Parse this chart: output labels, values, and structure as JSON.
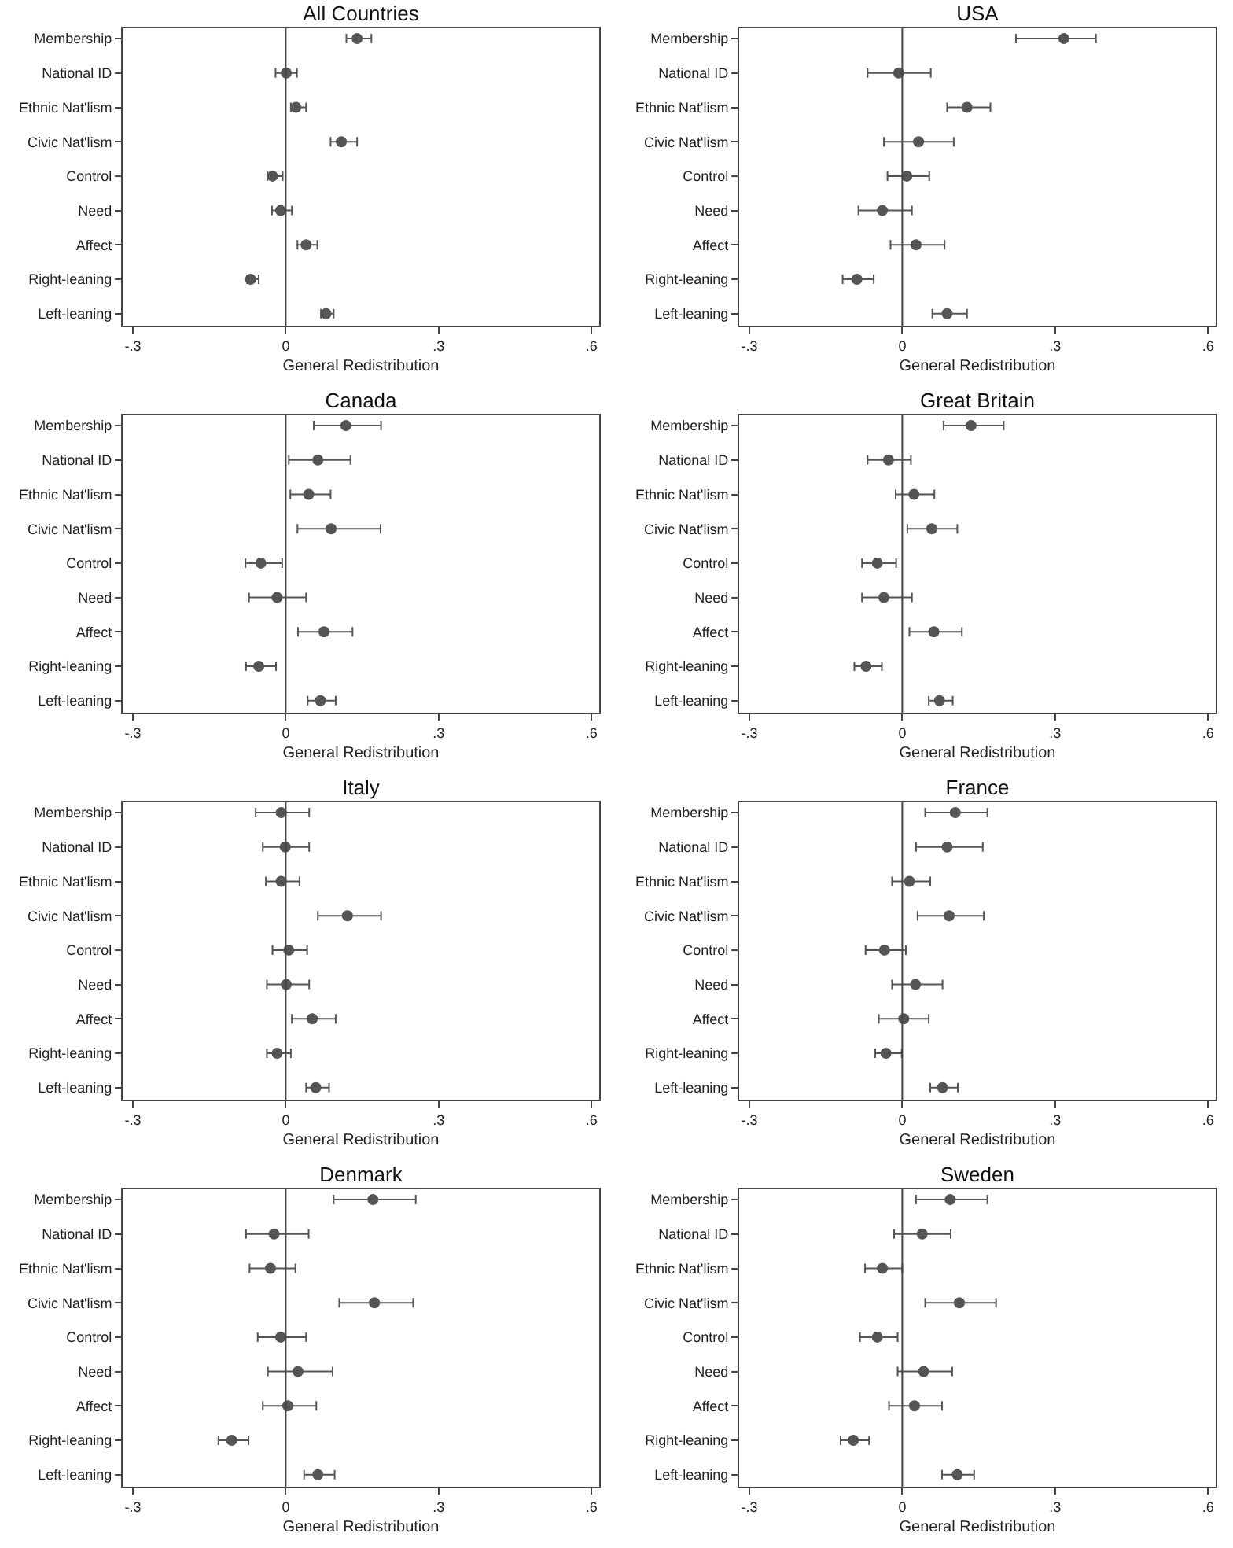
{
  "chart_data": [
    {
      "type": "scatter",
      "orientation": "horizontal",
      "title": "All Countries",
      "xlabel": "General Redistribution",
      "categories": [
        "Membership",
        "National ID",
        "Ethnic Nat'lism",
        "Civic Nat'lism",
        "Control",
        "Need",
        "Affect",
        "Right-leaning",
        "Left-leaning"
      ],
      "color": "#555555",
      "marker": "circle",
      "grid": false,
      "xlim": [
        -0.32,
        0.615
      ],
      "xticks": [
        {
          "value": -0.3,
          "label": "-.3"
        },
        {
          "value": 0,
          "label": "0"
        },
        {
          "value": 0.3,
          "label": ".3"
        },
        {
          "value": 0.6,
          "label": ".6"
        }
      ],
      "ref_lines": [
        {
          "axis": "x",
          "value": 0
        }
      ],
      "values": [
        0.14,
        0.001,
        0.02,
        0.109,
        -0.026,
        -0.01,
        0.04,
        -0.069,
        0.079
      ],
      "errors": [
        [
          0.119,
          0.168
        ],
        [
          -0.02,
          0.022
        ],
        [
          0.01,
          0.04
        ],
        [
          0.088,
          0.14
        ],
        [
          -0.036,
          -0.006
        ],
        [
          -0.027,
          0.012
        ],
        [
          0.023,
          0.062
        ],
        [
          -0.076,
          -0.053
        ],
        [
          0.069,
          0.094
        ]
      ]
    },
    {
      "type": "scatter",
      "orientation": "horizontal",
      "title": "USA",
      "xlabel": "General Redistribution",
      "categories": [
        "Membership",
        "National ID",
        "Ethnic Nat'lism",
        "Civic Nat'lism",
        "Control",
        "Need",
        "Affect",
        "Right-leaning",
        "Left-leaning"
      ],
      "color": "#555555",
      "marker": "circle",
      "grid": false,
      "xlim": [
        -0.32,
        0.615
      ],
      "xticks": [
        {
          "value": -0.3,
          "label": "-.3"
        },
        {
          "value": 0,
          "label": "0"
        },
        {
          "value": 0.3,
          "label": ".3"
        },
        {
          "value": 0.6,
          "label": ".6"
        }
      ],
      "ref_lines": [
        {
          "axis": "x",
          "value": 0
        }
      ],
      "values": [
        0.317,
        -0.007,
        0.127,
        0.032,
        0.009,
        -0.039,
        0.027,
        -0.089,
        0.088
      ],
      "errors": [
        [
          0.223,
          0.38
        ],
        [
          -0.068,
          0.056
        ],
        [
          0.088,
          0.173
        ],
        [
          -0.036,
          0.101
        ],
        [
          -0.029,
          0.053
        ],
        [
          -0.086,
          0.019
        ],
        [
          -0.023,
          0.083
        ],
        [
          -0.117,
          -0.056
        ],
        [
          0.059,
          0.127
        ]
      ]
    },
    {
      "type": "scatter",
      "orientation": "horizontal",
      "title": "Canada",
      "xlabel": "General Redistribution",
      "categories": [
        "Membership",
        "National ID",
        "Ethnic Nat'lism",
        "Civic Nat'lism",
        "Control",
        "Need",
        "Affect",
        "Right-leaning",
        "Left-leaning"
      ],
      "color": "#555555",
      "marker": "circle",
      "grid": false,
      "xlim": [
        -0.32,
        0.615
      ],
      "xticks": [
        {
          "value": -0.3,
          "label": "-.3"
        },
        {
          "value": 0,
          "label": "0"
        },
        {
          "value": 0.3,
          "label": ".3"
        },
        {
          "value": 0.6,
          "label": ".6"
        }
      ],
      "ref_lines": [
        {
          "axis": "x",
          "value": 0
        }
      ],
      "values": [
        0.118,
        0.063,
        0.045,
        0.089,
        -0.049,
        -0.017,
        0.075,
        -0.053,
        0.068
      ],
      "errors": [
        [
          0.055,
          0.187
        ],
        [
          0.006,
          0.127
        ],
        [
          0.009,
          0.088
        ],
        [
          0.023,
          0.186
        ],
        [
          -0.079,
          -0.007
        ],
        [
          -0.072,
          0.04
        ],
        [
          0.024,
          0.131
        ],
        [
          -0.078,
          -0.019
        ],
        [
          0.043,
          0.098
        ]
      ]
    },
    {
      "type": "scatter",
      "orientation": "horizontal",
      "title": "Great Britain",
      "xlabel": "General Redistribution",
      "categories": [
        "Membership",
        "National ID",
        "Ethnic Nat'lism",
        "Civic Nat'lism",
        "Control",
        "Need",
        "Affect",
        "Right-leaning",
        "Left-leaning"
      ],
      "color": "#555555",
      "marker": "circle",
      "grid": false,
      "xlim": [
        -0.32,
        0.615
      ],
      "xticks": [
        {
          "value": -0.3,
          "label": "-.3"
        },
        {
          "value": 0,
          "label": "0"
        },
        {
          "value": 0.3,
          "label": ".3"
        },
        {
          "value": 0.6,
          "label": ".6"
        }
      ],
      "ref_lines": [
        {
          "axis": "x",
          "value": 0
        }
      ],
      "values": [
        0.135,
        -0.027,
        0.023,
        0.058,
        -0.049,
        -0.036,
        0.062,
        -0.071,
        0.073
      ],
      "errors": [
        [
          0.081,
          0.199
        ],
        [
          -0.068,
          0.017
        ],
        [
          -0.013,
          0.063
        ],
        [
          0.01,
          0.108
        ],
        [
          -0.079,
          -0.012
        ],
        [
          -0.079,
          0.019
        ],
        [
          0.014,
          0.117
        ],
        [
          -0.094,
          -0.04
        ],
        [
          0.052,
          0.099
        ]
      ]
    },
    {
      "type": "scatter",
      "orientation": "horizontal",
      "title": "Italy",
      "xlabel": "General Redistribution",
      "categories": [
        "Membership",
        "National ID",
        "Ethnic Nat'lism",
        "Civic Nat'lism",
        "Control",
        "Need",
        "Affect",
        "Right-leaning",
        "Left-leaning"
      ],
      "color": "#555555",
      "marker": "circle",
      "grid": false,
      "xlim": [
        -0.32,
        0.615
      ],
      "xticks": [
        {
          "value": -0.3,
          "label": "-.3"
        },
        {
          "value": 0,
          "label": "0"
        },
        {
          "value": 0.3,
          "label": ".3"
        },
        {
          "value": 0.6,
          "label": ".6"
        }
      ],
      "ref_lines": [
        {
          "axis": "x",
          "value": 0
        }
      ],
      "values": [
        -0.009,
        -0.001,
        -0.009,
        0.121,
        0.006,
        0.001,
        0.052,
        -0.017,
        0.059
      ],
      "errors": [
        [
          -0.059,
          0.046
        ],
        [
          -0.045,
          0.046
        ],
        [
          -0.039,
          0.027
        ],
        [
          0.063,
          0.187
        ],
        [
          -0.026,
          0.042
        ],
        [
          -0.037,
          0.046
        ],
        [
          0.012,
          0.098
        ],
        [
          -0.037,
          0.01
        ],
        [
          0.04,
          0.085
        ]
      ]
    },
    {
      "type": "scatter",
      "orientation": "horizontal",
      "title": "France",
      "xlabel": "General Redistribution",
      "categories": [
        "Membership",
        "National ID",
        "Ethnic Nat'lism",
        "Civic Nat'lism",
        "Control",
        "Need",
        "Affect",
        "Right-leaning",
        "Left-leaning"
      ],
      "color": "#555555",
      "marker": "circle",
      "grid": false,
      "xlim": [
        -0.32,
        0.615
      ],
      "xticks": [
        {
          "value": -0.3,
          "label": "-.3"
        },
        {
          "value": 0,
          "label": "0"
        },
        {
          "value": 0.3,
          "label": ".3"
        },
        {
          "value": 0.6,
          "label": ".6"
        }
      ],
      "ref_lines": [
        {
          "axis": "x",
          "value": 0
        }
      ],
      "values": [
        0.104,
        0.088,
        0.014,
        0.092,
        -0.035,
        0.026,
        0.003,
        -0.032,
        0.079
      ],
      "errors": [
        [
          0.045,
          0.167
        ],
        [
          0.027,
          0.158
        ],
        [
          -0.02,
          0.055
        ],
        [
          0.03,
          0.16
        ],
        [
          -0.072,
          0.007
        ],
        [
          -0.02,
          0.079
        ],
        [
          -0.046,
          0.052
        ],
        [
          -0.053,
          -0.001
        ],
        [
          0.055,
          0.109
        ]
      ]
    },
    {
      "type": "scatter",
      "orientation": "horizontal",
      "title": "Denmark",
      "xlabel": "General Redistribution",
      "categories": [
        "Membership",
        "National ID",
        "Ethnic Nat'lism",
        "Civic Nat'lism",
        "Control",
        "Need",
        "Affect",
        "Right-leaning",
        "Left-leaning"
      ],
      "color": "#555555",
      "marker": "circle",
      "grid": false,
      "xlim": [
        -0.32,
        0.615
      ],
      "xticks": [
        {
          "value": -0.3,
          "label": "-.3"
        },
        {
          "value": 0,
          "label": "0"
        },
        {
          "value": 0.3,
          "label": ".3"
        },
        {
          "value": 0.6,
          "label": ".6"
        }
      ],
      "ref_lines": [
        {
          "axis": "x",
          "value": 0
        }
      ],
      "values": [
        0.171,
        -0.023,
        -0.03,
        0.174,
        -0.01,
        0.024,
        0.004,
        -0.106,
        0.063
      ],
      "errors": [
        [
          0.094,
          0.255
        ],
        [
          -0.078,
          0.045
        ],
        [
          -0.071,
          0.019
        ],
        [
          0.105,
          0.25
        ],
        [
          -0.055,
          0.04
        ],
        [
          -0.035,
          0.092
        ],
        [
          -0.045,
          0.06
        ],
        [
          -0.132,
          -0.073
        ],
        [
          0.036,
          0.096
        ]
      ]
    },
    {
      "type": "scatter",
      "orientation": "horizontal",
      "title": "Sweden",
      "xlabel": "General Redistribution",
      "categories": [
        "Membership",
        "National ID",
        "Ethnic Nat'lism",
        "Civic Nat'lism",
        "Control",
        "Need",
        "Affect",
        "Right-leaning",
        "Left-leaning"
      ],
      "color": "#555555",
      "marker": "circle",
      "grid": false,
      "xlim": [
        -0.32,
        0.615
      ],
      "xticks": [
        {
          "value": -0.3,
          "label": "-.3"
        },
        {
          "value": 0,
          "label": "0"
        },
        {
          "value": 0.3,
          "label": ".3"
        },
        {
          "value": 0.6,
          "label": ".6"
        }
      ],
      "ref_lines": [
        {
          "axis": "x",
          "value": 0
        }
      ],
      "values": [
        0.094,
        0.039,
        -0.039,
        0.112,
        -0.049,
        0.042,
        0.024,
        -0.096,
        0.108
      ],
      "errors": [
        [
          0.027,
          0.167
        ],
        [
          -0.016,
          0.095
        ],
        [
          -0.073,
          0.0
        ],
        [
          0.045,
          0.184
        ],
        [
          -0.083,
          -0.009
        ],
        [
          -0.009,
          0.098
        ],
        [
          -0.026,
          0.078
        ],
        [
          -0.121,
          -0.065
        ],
        [
          0.078,
          0.141
        ]
      ]
    }
  ]
}
